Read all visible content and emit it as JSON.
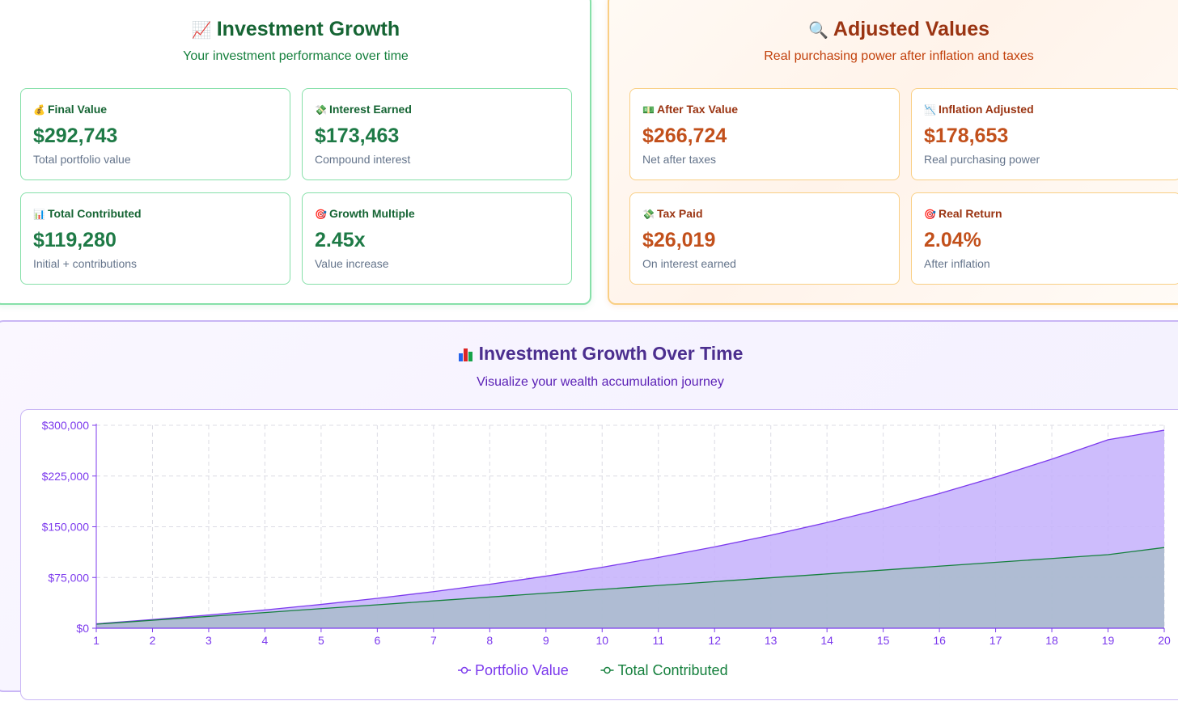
{
  "growth": {
    "title_icon": "chart-increasing-icon",
    "title": "Investment Growth",
    "subtitle": "Your investment performance over time",
    "cards": [
      {
        "icon": "money-bag-icon",
        "emoji": "💰",
        "label": "Final Value",
        "value": "$292,743",
        "desc": "Total portfolio value"
      },
      {
        "icon": "money-wings-icon",
        "emoji": "💸",
        "label": "Interest Earned",
        "value": "$173,463",
        "desc": "Compound interest"
      },
      {
        "icon": "bar-chart-icon",
        "emoji": "📊",
        "label": "Total Contributed",
        "value": "$119,280",
        "desc": "Initial + contributions"
      },
      {
        "icon": "target-icon",
        "emoji": "🎯",
        "label": "Growth Multiple",
        "value": "2.45x",
        "desc": "Value increase"
      }
    ]
  },
  "adjusted": {
    "title_icon": "magnifier-icon",
    "title": "Adjusted Values",
    "subtitle": "Real purchasing power after inflation and taxes",
    "cards": [
      {
        "icon": "dollar-banknote-icon",
        "emoji": "💵",
        "label": "After Tax Value",
        "value": "$266,724",
        "desc": "Net after taxes"
      },
      {
        "icon": "chart-decreasing-icon",
        "emoji": "📉",
        "label": "Inflation Adjusted",
        "value": "$178,653",
        "desc": "Real purchasing power"
      },
      {
        "icon": "money-wings-icon",
        "emoji": "💸",
        "label": "Tax Paid",
        "value": "$26,019",
        "desc": "On interest earned"
      },
      {
        "icon": "target-icon",
        "emoji": "🎯",
        "label": "Real Return",
        "value": "2.04%",
        "desc": "After inflation"
      }
    ]
  },
  "chart_section": {
    "title_icon": "bar-chart-icon",
    "title": "Investment Growth Over Time",
    "subtitle": "Visualize your wealth accumulation journey"
  },
  "colors": {
    "portfolio": "#7c3aed",
    "portfolio_fill": "#c4b0fb",
    "contributed": "#15803d",
    "contributed_fill": "#a9bccb",
    "axis": "#7c3aed"
  },
  "chart_data": {
    "type": "area",
    "x": [
      1,
      2,
      3,
      4,
      5,
      6,
      7,
      8,
      9,
      10,
      11,
      12,
      13,
      14,
      15,
      16,
      17,
      18,
      19,
      20
    ],
    "series": [
      {
        "name": "Portfolio Value",
        "values": [
          6500,
          12800,
          19600,
          27000,
          35200,
          44200,
          54100,
          65000,
          77000,
          90100,
          104600,
          120300,
          137500,
          156300,
          176800,
          199100,
          223500,
          249900,
          278600,
          292743
        ]
      },
      {
        "name": "Total Contributed",
        "values": [
          6000,
          11800,
          17500,
          23200,
          29000,
          34700,
          40400,
          46100,
          51800,
          57500,
          63200,
          68900,
          74600,
          80300,
          86000,
          91700,
          97400,
          103100,
          108800,
          119280
        ]
      }
    ],
    "ylim": [
      0,
      300000
    ],
    "yticks": [
      "$0",
      "$75,000",
      "$150,000",
      "$225,000",
      "$300,000"
    ],
    "ytick_values": [
      0,
      75000,
      150000,
      225000,
      300000
    ],
    "grid": true,
    "legend": "bottom"
  }
}
